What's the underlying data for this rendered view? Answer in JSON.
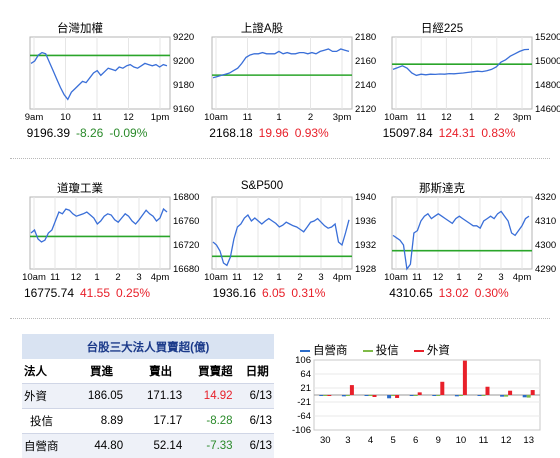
{
  "colors": {
    "line": "#3a6fd8",
    "baseline": "#2aa52a",
    "up": "#e8202a",
    "down": "#2a8a2a",
    "dealer": "#2a6bc8",
    "trust": "#7fba48",
    "foreign": "#e8202a"
  },
  "panels": [
    {
      "title": "台灣加權",
      "yticks": [
        "9220",
        "9200",
        "9180",
        "9160"
      ],
      "yrange": [
        9160,
        9220
      ],
      "baseline": 9204.65,
      "xticks": [
        "9am",
        "10",
        "11",
        "12",
        "1pm"
      ],
      "series": [
        9198,
        9200,
        9205,
        9207,
        9206,
        9199,
        9192,
        9185,
        9178,
        9172,
        9168,
        9174,
        9177,
        9180,
        9183,
        9182,
        9186,
        9190,
        9192,
        9188,
        9191,
        9194,
        9193,
        9192,
        9195,
        9194,
        9196,
        9197,
        9195,
        9194,
        9196,
        9198,
        9197,
        9196,
        9197,
        9195,
        9197,
        9196
      ],
      "price": "9196.39",
      "change": "-8.26",
      "pct": "-0.09%",
      "dir": "down"
    },
    {
      "title": "上證A股",
      "yticks": [
        "2180",
        "2160",
        "2140",
        "2120"
      ],
      "yrange": [
        2120,
        2180
      ],
      "baseline": 2148.22,
      "xticks": [
        "10am",
        "11",
        "1",
        "2",
        "3pm"
      ],
      "series": [
        2146,
        2147,
        2148,
        2149,
        2150,
        2152,
        2154,
        2158,
        2163,
        2165,
        2166,
        2166,
        2167,
        2166,
        2166,
        2166,
        2168,
        2166,
        2167,
        2166,
        2166,
        2167,
        2167,
        2166,
        2167,
        2166,
        2168,
        2169,
        2170,
        2168,
        2168,
        2170,
        2169,
        2168
      ],
      "price": "2168.18",
      "change": "19.96",
      "pct": "0.93%",
      "dir": "up"
    },
    {
      "title": "日經225",
      "yticks": [
        "15200",
        "15000",
        "14800",
        "14600"
      ],
      "yrange": [
        14600,
        15200
      ],
      "baseline": 14973.53,
      "xticks": [
        "10am",
        "11",
        "12",
        "1",
        "2",
        "3pm"
      ],
      "series": [
        14930,
        14945,
        14960,
        14940,
        14900,
        14880,
        14890,
        14885,
        14890,
        14888,
        14892,
        14890,
        14895,
        14893,
        14897,
        14900,
        14905,
        14910,
        14915,
        14912,
        14918,
        14930,
        14950,
        14990,
        15010,
        15040,
        15060,
        15080,
        15095,
        15097
      ],
      "price": "15097.84",
      "change": "124.31",
      "pct": "0.83%",
      "dir": "up"
    },
    {
      "title": "道瓊工業",
      "yticks": [
        "16800",
        "16760",
        "16720",
        "16680"
      ],
      "yrange": [
        16680,
        16800
      ],
      "baseline": 16734.19,
      "xticks": [
        "10am",
        "11",
        "12",
        "1",
        "2",
        "3",
        "4pm"
      ],
      "series": [
        16740,
        16745,
        16730,
        16725,
        16728,
        16740,
        16745,
        16760,
        16775,
        16772,
        16780,
        16778,
        16772,
        16768,
        16770,
        16772,
        16775,
        16770,
        16765,
        16755,
        16760,
        16768,
        16772,
        16770,
        16762,
        16758,
        16765,
        16772,
        16768,
        16760,
        16755,
        16762,
        16770,
        16778,
        16772,
        16768,
        16760,
        16765,
        16780,
        16775
      ],
      "price": "16775.74",
      "change": "41.55",
      "pct": "0.25%",
      "dir": "up"
    },
    {
      "title": "S&P500",
      "yticks": [
        "1940",
        "1936",
        "1932",
        "1928"
      ],
      "yrange": [
        1928,
        1940
      ],
      "baseline": 1930.11,
      "xticks": [
        "10am",
        "11",
        "12",
        "1",
        "2",
        "3",
        "4pm"
      ],
      "series": [
        1932.5,
        1932,
        1931,
        1929,
        1928.6,
        1930,
        1933,
        1935,
        1935.5,
        1936.5,
        1937,
        1936,
        1936.5,
        1936,
        1935.5,
        1936,
        1936.4,
        1936,
        1935.6,
        1935,
        1935.3,
        1935.8,
        1935.5,
        1935.2,
        1935,
        1934.6,
        1934.2,
        1935,
        1935.8,
        1936,
        1936.4,
        1935.8,
        1935.2,
        1934.8,
        1935,
        1935.5,
        1932.5,
        1932,
        1934,
        1936.2
      ],
      "price": "1936.16",
      "change": "6.05",
      "pct": "0.31%",
      "dir": "up"
    },
    {
      "title": "那斯達克",
      "yticks": [
        "4320",
        "4310",
        "4300",
        "4290"
      ],
      "yrange": [
        4290,
        4320
      ],
      "baseline": 4297.63,
      "xticks": [
        "10am",
        "11",
        "12",
        "1",
        "2",
        "3",
        "4pm"
      ],
      "series": [
        4304,
        4303,
        4302,
        4300,
        4290,
        4292,
        4305,
        4306,
        4310,
        4312,
        4313,
        4311,
        4312,
        4313,
        4312,
        4311,
        4310,
        4309,
        4311,
        4312,
        4311,
        4310,
        4309,
        4308,
        4308,
        4307,
        4310,
        4311,
        4312,
        4311,
        4313,
        4314,
        4312,
        4310,
        4305,
        4304,
        4306,
        4308,
        4311,
        4312
      ],
      "price": "4310.65",
      "change": "13.02",
      "pct": "0.30%",
      "dir": "up"
    }
  ],
  "table": {
    "title": "台股三大法人買賣超(億)",
    "headers": [
      "法人",
      "買進",
      "賣出",
      "買賣超",
      "日期"
    ],
    "rows": [
      {
        "name": "外資",
        "buy": "186.05",
        "sell": "171.13",
        "net": "14.92",
        "date": "6/13",
        "sign": "pos"
      },
      {
        "name": "投信",
        "buy": "8.89",
        "sell": "17.17",
        "net": "-8.28",
        "date": "6/13",
        "sign": "neg"
      },
      {
        "name": "自營商",
        "buy": "44.80",
        "sell": "52.14",
        "net": "-7.33",
        "date": "6/13",
        "sign": "neg"
      }
    ]
  },
  "legend": [
    {
      "label": "自營商",
      "color": "#2a6bc8"
    },
    {
      "label": "投信",
      "color": "#7fba48"
    },
    {
      "label": "外資",
      "color": "#e8202a"
    }
  ],
  "chart_data": {
    "type": "bar",
    "categories": [
      "30",
      "3",
      "4",
      "5",
      "6",
      "9",
      "10",
      "11",
      "12",
      "13"
    ],
    "series": [
      {
        "name": "自營商",
        "values": [
          -2,
          -4,
          -3,
          -10,
          -2,
          -3,
          -4,
          -3,
          -5,
          -7
        ]
      },
      {
        "name": "投信",
        "values": [
          -2,
          -1,
          -2,
          -1,
          -1,
          -2,
          -2,
          -2,
          -5,
          -8
        ]
      },
      {
        "name": "外資",
        "values": [
          -3,
          30,
          -6,
          -9,
          8,
          40,
          104,
          25,
          13,
          15
        ]
      }
    ],
    "yticks": [
      "106",
      "64",
      "21",
      "-21",
      "-64",
      "-106"
    ],
    "ylim": [
      -106,
      106
    ]
  }
}
